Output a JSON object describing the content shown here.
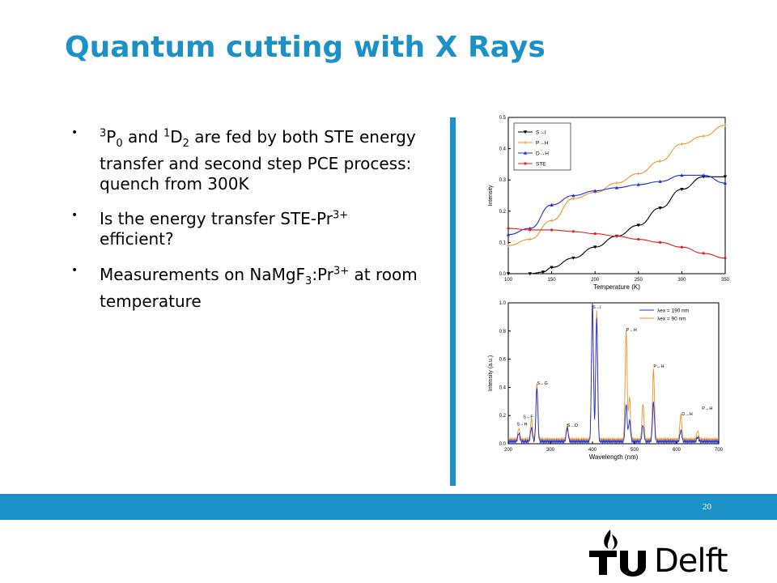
{
  "title": "Quantum cutting with X Rays",
  "bullets": [
    {
      "parts": [
        {
          "sup": "3"
        },
        {
          "t": "P"
        },
        {
          "sub": "0"
        },
        {
          "t": " and "
        },
        {
          "sup": "1"
        },
        {
          "t": "D"
        },
        {
          "sub": "2"
        },
        {
          "t": " are fed by both STE energy transfer and second step PCE process: quench from 300K"
        }
      ]
    },
    {
      "parts": [
        {
          "t": "Is the energy transfer STE-Pr"
        },
        {
          "sup": "3+"
        },
        {
          "t": " efficient?"
        }
      ]
    },
    {
      "parts": [
        {
          "t": "Measurements on NaMgF"
        },
        {
          "sub": "3"
        },
        {
          "t": ":Pr"
        },
        {
          "sup": "3+"
        },
        {
          "t": " at room temperature"
        }
      ]
    }
  ],
  "page_number": "20",
  "logo": {
    "text": "Delft",
    "monogram": "TU",
    "icon": "flame-icon"
  },
  "colors": {
    "accent": "#1b91c8",
    "black": "#000000",
    "orange": "#e8962a",
    "blue": "#1f2fd6",
    "red": "#e0201c"
  },
  "chart_data": [
    {
      "type": "line",
      "title": "",
      "xlabel": "Temperature (K)",
      "ylabel": "Intensity",
      "xlim": [
        100,
        350
      ],
      "ylim": [
        0,
        0.5
      ],
      "xticks": [
        100,
        150,
        200,
        250,
        300,
        350
      ],
      "yticks": [
        0.0,
        0.1,
        0.2,
        0.3,
        0.4,
        0.5
      ],
      "legend_position": "top-left",
      "series": [
        {
          "name": "S→I",
          "color": "#000000",
          "marker": "triangle-down",
          "x": [
            100,
            125,
            140,
            150,
            175,
            200,
            225,
            250,
            275,
            300,
            325,
            350
          ],
          "y": [
            0.0,
            0.0,
            0.005,
            0.02,
            0.05,
            0.085,
            0.12,
            0.155,
            0.21,
            0.27,
            0.31,
            0.31
          ]
        },
        {
          "name": "P→H",
          "color": "#e8962a",
          "marker": "plus",
          "x": [
            100,
            125,
            150,
            175,
            200,
            225,
            250,
            275,
            300,
            325,
            350
          ],
          "y": [
            0.09,
            0.11,
            0.17,
            0.24,
            0.26,
            0.29,
            0.32,
            0.36,
            0.415,
            0.44,
            0.475
          ]
        },
        {
          "name": "D→H",
          "color": "#1f2fd6",
          "marker": "triangle-up",
          "x": [
            100,
            125,
            150,
            175,
            200,
            225,
            250,
            275,
            300,
            325,
            350
          ],
          "y": [
            0.125,
            0.145,
            0.22,
            0.25,
            0.265,
            0.275,
            0.285,
            0.295,
            0.315,
            0.315,
            0.29
          ]
        },
        {
          "name": "STE",
          "color": "#e0201c",
          "marker": "circle",
          "x": [
            100,
            125,
            150,
            175,
            200,
            225,
            250,
            275,
            300,
            325,
            350
          ],
          "y": [
            0.145,
            0.14,
            0.14,
            0.135,
            0.128,
            0.12,
            0.11,
            0.1,
            0.085,
            0.065,
            0.05
          ]
        }
      ]
    },
    {
      "type": "line",
      "title": "",
      "xlabel": "Wavelength (nm)",
      "ylabel": "Intensity (a.u.)",
      "xlim": [
        200,
        700
      ],
      "ylim": [
        0,
        1.0
      ],
      "xticks": [
        200,
        300,
        400,
        500,
        600,
        700
      ],
      "yticks": [
        0.0,
        0.2,
        0.4,
        0.6,
        0.8,
        1.0
      ],
      "legend_position": "top-right",
      "series": [
        {
          "name": "λex = 190 nm",
          "color": "#1f2fd6"
        },
        {
          "name": "λex = 90 nm",
          "color": "#e8962a"
        }
      ],
      "peaks": [
        {
          "x": 225,
          "blue": 0.06,
          "orange": 0.08
        },
        {
          "x": 255,
          "blue": 0.1,
          "orange": 0.15
        },
        {
          "x": 268,
          "blue": 0.38,
          "orange": 0.4
        },
        {
          "x": 340,
          "blue": 0.1,
          "orange": 0.11
        },
        {
          "x": 400,
          "blue": 0.98,
          "orange": 1.0
        },
        {
          "x": 410,
          "blue": 0.88,
          "orange": 0.92
        },
        {
          "x": 480,
          "blue": 0.27,
          "orange": 0.78
        },
        {
          "x": 488,
          "blue": 0.15,
          "orange": 0.3
        },
        {
          "x": 520,
          "blue": 0.12,
          "orange": 0.26
        },
        {
          "x": 545,
          "blue": 0.28,
          "orange": 0.5
        },
        {
          "x": 610,
          "blue": 0.08,
          "orange": 0.18
        },
        {
          "x": 650,
          "blue": 0.03,
          "orange": 0.06
        }
      ],
      "annotations": [
        {
          "text": "S→I",
          "x": 400,
          "y": 0.96
        },
        {
          "text": "P→H",
          "x": 480,
          "y": 0.8
        },
        {
          "text": "P→H",
          "x": 545,
          "y": 0.54
        },
        {
          "text": "S→G",
          "x": 268,
          "y": 0.42
        },
        {
          "text": "S→F",
          "x": 235,
          "y": 0.18
        },
        {
          "text": "S→H",
          "x": 220,
          "y": 0.13
        },
        {
          "text": "S→D",
          "x": 340,
          "y": 0.12
        },
        {
          "text": "D→H",
          "x": 612,
          "y": 0.2
        },
        {
          "text": "P→H",
          "x": 660,
          "y": 0.24
        }
      ]
    }
  ]
}
